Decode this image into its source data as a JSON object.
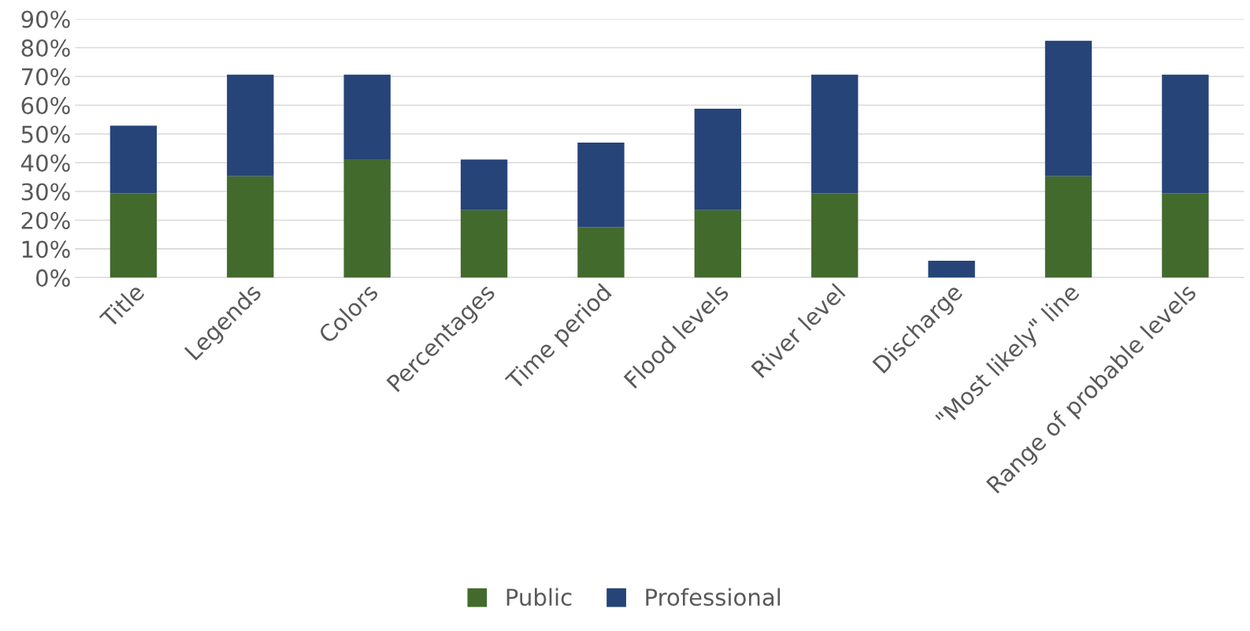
{
  "chart_data": {
    "type": "bar",
    "stacked": true,
    "categories": [
      "Title",
      "Legends",
      "Colors",
      "Percentages",
      "Time period",
      "Flood levels",
      "River level",
      "Discharge",
      "\"Most likely\" line",
      "Range of probable levels"
    ],
    "series": [
      {
        "name": "Public",
        "color": "#436a2d",
        "values": [
          29.4,
          35.3,
          41.2,
          23.5,
          17.6,
          23.5,
          29.4,
          0,
          35.3,
          29.4
        ]
      },
      {
        "name": "Professional",
        "color": "#264478",
        "values": [
          23.5,
          35.3,
          29.4,
          17.6,
          29.4,
          35.3,
          41.2,
          5.9,
          47.1,
          41.2
        ]
      }
    ],
    "ylim": [
      0,
      90
    ],
    "yticks": [
      {
        "value": 0,
        "label": "0%"
      },
      {
        "value": 10,
        "label": "10%"
      },
      {
        "value": 20,
        "label": "20%"
      },
      {
        "value": 30,
        "label": "30%"
      },
      {
        "value": 40,
        "label": "40%"
      },
      {
        "value": 50,
        "label": "50%"
      },
      {
        "value": 60,
        "label": "60%"
      },
      {
        "value": 70,
        "label": "70%"
      },
      {
        "value": 80,
        "label": "80%"
      },
      {
        "value": 90,
        "label": "90%"
      }
    ],
    "grid": "y",
    "legend": "bottom"
  }
}
